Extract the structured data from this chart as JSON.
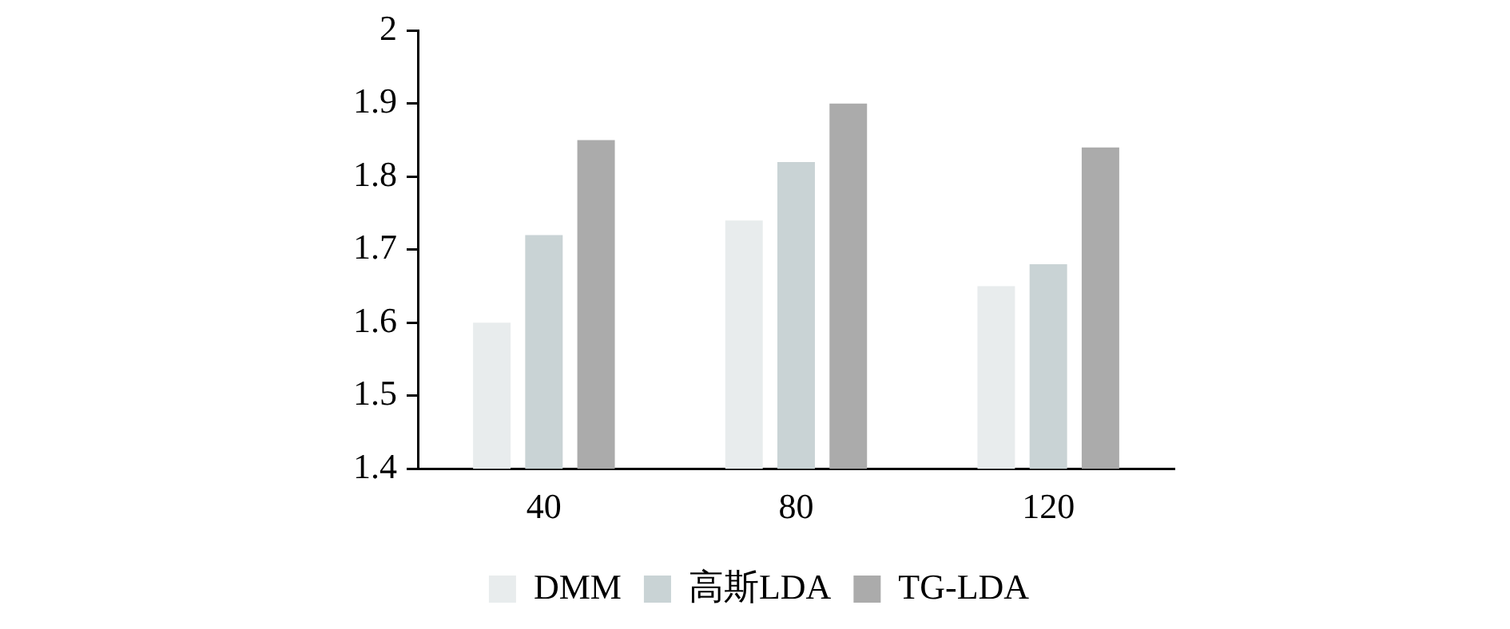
{
  "chart_data": {
    "type": "bar",
    "categories": [
      "40",
      "80",
      "120"
    ],
    "series": [
      {
        "name": "DMM",
        "color": "#e8eced",
        "values": [
          1.6,
          1.74,
          1.65
        ]
      },
      {
        "name": "高斯LDA",
        "color": "#c9d3d5",
        "values": [
          1.72,
          1.82,
          1.68
        ]
      },
      {
        "name": "TG-LDA",
        "color": "#ababab",
        "values": [
          1.85,
          1.9,
          1.84
        ]
      }
    ],
    "ylim": [
      1.4,
      2
    ],
    "yticks": [
      1.4,
      1.5,
      1.6,
      1.7,
      1.8,
      1.9,
      2
    ],
    "grid": false,
    "legend": "bottom"
  }
}
